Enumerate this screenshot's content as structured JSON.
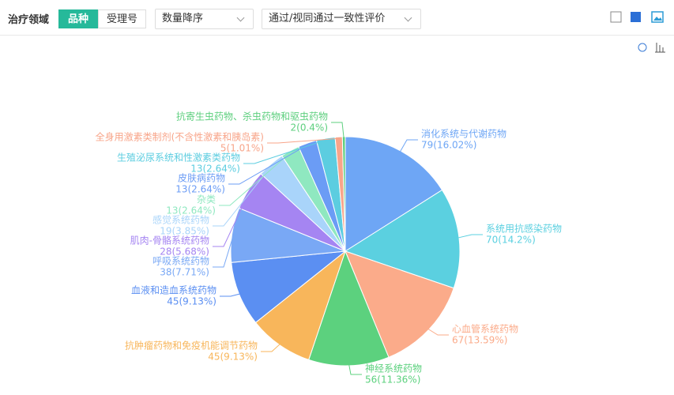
{
  "ui": {
    "filter_label": "治疗领域",
    "tabs": [
      "品种",
      "受理号"
    ],
    "sort": "数量降序",
    "filter": "通过/视同通过一致性评价"
  },
  "chart_data": {
    "type": "pie",
    "categories": [
      "消化系统与代谢药物",
      "系统用抗感染药物",
      "心血管系统药物",
      "神经系统药物",
      "抗肿瘤药物和免疫机能调节药物",
      "血液和造血系统药物",
      "呼吸系统药物",
      "肌肉-骨骼系统药物",
      "感觉系统药物",
      "杂类",
      "皮肤病药物",
      "生殖泌尿系统和性激素类药物",
      "全身用激素类制剂(不含性激素和胰岛素)",
      "抗寄生虫药物、杀虫药物和驱虫药物"
    ],
    "values": [
      79,
      70,
      67,
      56,
      45,
      45,
      38,
      28,
      19,
      13,
      13,
      13,
      5,
      2
    ],
    "value_labels": [
      "79(16.02%)",
      "70(14.2%)",
      "67(13.59%)",
      "56(11.36%)",
      "45(9.13%)",
      "45(9.13%)",
      "38(7.71%)",
      "28(5.68%)",
      "19(3.85%)",
      "13(2.64%)",
      "13(2.64%)",
      "13(2.64%)",
      "5(1.01%)",
      "2(0.4%)"
    ],
    "colors": [
      "#6ea6f5",
      "#5bd0e0",
      "#fbab8a",
      "#5cd17e",
      "#f8b65b",
      "#5b8ff2",
      "#79a8f5",
      "#a585f2",
      "#a9d4fa",
      "#8fe8c0",
      "#6b9cf5",
      "#5ccde0",
      "#f8a58a",
      "#5dcf7e"
    ]
  }
}
